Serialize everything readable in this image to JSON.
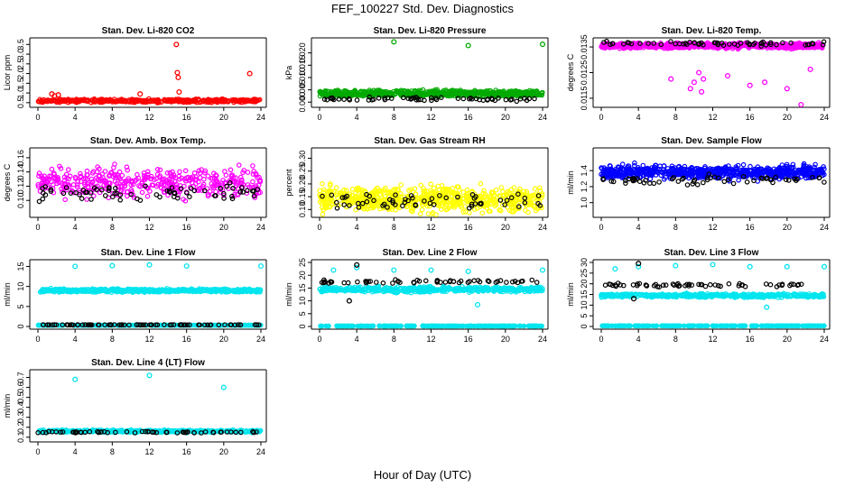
{
  "figure": {
    "title": "FEF_100227  Std. Dev. Diagnostics",
    "xlabel": "Hour of Day (UTC)"
  },
  "chart_data": [
    {
      "type": "scatter",
      "title": "Stan. Dev. Li-820 CO2",
      "ylabel": "Licor ppm",
      "xlim": [
        0,
        24
      ],
      "xticks": [
        0,
        4,
        8,
        12,
        16,
        20,
        24
      ],
      "ylim": [
        0.4,
        3.7
      ],
      "yticks": [
        0.5,
        1.0,
        1.5,
        2.0,
        2.5,
        3.0,
        3.5
      ],
      "ytick_labels": [
        "0.5",
        "1.0",
        "1.5",
        "2.0",
        "2.5",
        "3.0",
        "3.5"
      ],
      "series": [
        {
          "color": "#ff0000",
          "fill": "dense",
          "base": 0.6,
          "spread": 0.12,
          "n": 420,
          "points": [
            [
              1.5,
              0.95
            ],
            [
              1.8,
              0.85
            ],
            [
              2.2,
              0.9
            ],
            [
              11.0,
              0.95
            ],
            [
              14.9,
              3.5
            ],
            [
              15.0,
              2.05
            ],
            [
              15.1,
              1.8
            ],
            [
              15.2,
              1.05
            ],
            [
              22.8,
              2.0
            ]
          ]
        },
        {
          "color": "#000000",
          "fill": "sparse",
          "base": 0.48,
          "spread": 0.04,
          "n": 0
        }
      ]
    },
    {
      "type": "scatter",
      "title": "Stan. Dev. Li-820 Pressure",
      "ylabel": "kPa",
      "xlim": [
        0,
        24
      ],
      "xticks": [
        0,
        4,
        8,
        12,
        16,
        20,
        24
      ],
      "ylim": [
        -0.001,
        0.025
      ],
      "yticks": [
        0.0,
        0.005,
        0.01,
        0.015,
        0.02
      ],
      "ytick_labels": [
        "0.000",
        "0.005",
        "0.010",
        "0.015",
        "0.020"
      ],
      "series": [
        {
          "color": "#00aa00",
          "fill": "dense",
          "base": 0.0035,
          "spread": 0.0018,
          "n": 700,
          "points": [
            [
              8.0,
              0.0245
            ],
            [
              16.0,
              0.023
            ],
            [
              24.0,
              0.0235
            ]
          ]
        },
        {
          "color": "#000000",
          "fill": "sparse",
          "base": 0.0012,
          "spread": 0.0012,
          "n": 60
        }
      ]
    },
    {
      "type": "scatter",
      "title": "Stan. Dev. Li-820 Temp.",
      "ylabel": "degrees C",
      "xlim": [
        0,
        24
      ],
      "xticks": [
        0,
        4,
        8,
        12,
        16,
        20,
        24
      ],
      "ylim": [
        0.0145,
        0.0146
      ],
      "yticks": [
        0.0115,
        0.0125,
        0.0135
      ],
      "ytick_labels": [
        "0.0115",
        "0.0125",
        "0.0135"
      ],
      "series": [
        {
          "color": "#ff00ff",
          "fill": "dense",
          "base": 0.92,
          "spread": 0.06,
          "n": 650,
          "unitspace": true,
          "points": [
            [
              7.5,
              0.4
            ],
            [
              9.6,
              0.25
            ],
            [
              10.0,
              0.35
            ],
            [
              10.5,
              0.5
            ],
            [
              10.8,
              0.2
            ],
            [
              11.0,
              0.4
            ],
            [
              13.6,
              0.45
            ],
            [
              16.0,
              0.3
            ],
            [
              17.6,
              0.35
            ],
            [
              20.0,
              0.25
            ],
            [
              21.5,
              0.0
            ],
            [
              22.5,
              0.55
            ]
          ]
        },
        {
          "color": "#000000",
          "fill": "sparse",
          "base": 0.95,
          "spread": 0.05,
          "n": 60,
          "unitspace": true
        }
      ]
    },
    {
      "type": "scatter",
      "title": "Stan. Dev. Amb. Box Temp.",
      "ylabel": "degrees C",
      "xlim": [
        0,
        24
      ],
      "xticks": [
        0,
        4,
        8,
        12,
        16,
        20,
        24
      ],
      "ylim": [
        0.08,
        0.17
      ],
      "yticks": [
        0.1,
        0.12,
        0.14,
        0.16
      ],
      "ytick_labels": [
        "0.10",
        "0.12",
        "0.14",
        "0.16"
      ],
      "series": [
        {
          "color": "#ff00ff",
          "fill": "dense",
          "base": 0.125,
          "spread": 0.03,
          "n": 420,
          "hollow": true
        },
        {
          "color": "#000000",
          "fill": "sparse",
          "base": 0.11,
          "spread": 0.018,
          "n": 70,
          "hollow": true
        }
      ]
    },
    {
      "type": "scatter",
      "title": "Stan. Dev. Gas Stream RH",
      "ylabel": "percent",
      "xlim": [
        0,
        24
      ],
      "xticks": [
        0,
        4,
        8,
        12,
        16,
        20,
        24
      ],
      "ylim": [
        0.08,
        0.33
      ],
      "yticks": [
        0.1,
        0.15,
        0.2,
        0.25,
        0.3
      ],
      "ytick_labels": [
        "0.10",
        "0.15",
        "0.20",
        "0.25",
        "0.30"
      ],
      "series": [
        {
          "color": "#ffff00",
          "fill": "dense",
          "base": 0.14,
          "spread": 0.07,
          "n": 700
        },
        {
          "color": "#000000",
          "fill": "sparse",
          "base": 0.13,
          "spread": 0.05,
          "n": 60,
          "hollow": true
        }
      ]
    },
    {
      "type": "scatter",
      "title": "Stan. Dev. Sample Flow",
      "ylabel": "ml/min",
      "xlim": [
        0,
        24
      ],
      "xticks": [
        0,
        4,
        8,
        12,
        16,
        20,
        24
      ],
      "ylim": [
        0.85,
        1.65
      ],
      "yticks": [
        1.0,
        1.2,
        1.4
      ],
      "ytick_labels": [
        "1.0",
        "1.2",
        "1.4"
      ],
      "series": [
        {
          "color": "#0000ff",
          "fill": "dense",
          "base": 1.38,
          "spread": 0.12,
          "n": 700,
          "hollow": true
        },
        {
          "color": "#000000",
          "fill": "sparse",
          "base": 1.28,
          "spread": 0.08,
          "n": 60,
          "hollow": true
        }
      ]
    },
    {
      "type": "scatter",
      "title": "Stan. Dev. Line 1 Flow",
      "ylabel": "ml/min",
      "xlim": [
        0,
        24
      ],
      "xticks": [
        0,
        4,
        8,
        12,
        16,
        20,
        24
      ],
      "ylim": [
        0,
        16
      ],
      "yticks": [
        0,
        5,
        10,
        15
      ],
      "ytick_labels": [
        "0",
        "5",
        "10",
        "15"
      ],
      "series": [
        {
          "color": "#00e5ee",
          "fill": "band",
          "base": 9.0,
          "spread": 0.6,
          "n": 500,
          "points": [
            [
              4.0,
              15.0
            ],
            [
              8.0,
              15.2
            ],
            [
              12.0,
              15.4
            ],
            [
              16.0,
              15.1
            ],
            [
              24.0,
              15.1
            ]
          ]
        },
        {
          "color": "#00e5ee",
          "fill": "line",
          "base": 0.3,
          "spread": 0.05,
          "n": 200
        },
        {
          "color": "#000000",
          "fill": "line",
          "base": 0.4,
          "spread": 0.05,
          "n": 80,
          "hollow": true
        }
      ]
    },
    {
      "type": "scatter",
      "title": "Stan. Dev. Line 2 Flow",
      "ylabel": "ml/min",
      "xlim": [
        0,
        24
      ],
      "xticks": [
        0,
        4,
        8,
        12,
        16,
        20,
        24
      ],
      "ylim": [
        0,
        25
      ],
      "yticks": [
        0,
        5,
        10,
        15,
        20,
        25
      ],
      "ytick_labels": [
        "0",
        "5",
        "10",
        "15",
        "20",
        "25"
      ],
      "series": [
        {
          "color": "#00e5ee",
          "fill": "band",
          "base": 14.5,
          "spread": 1.5,
          "n": 500,
          "points": [
            [
              1.5,
              22.0
            ],
            [
              4.0,
              23.0
            ],
            [
              8.0,
              22.0
            ],
            [
              12.0,
              22.0
            ],
            [
              16.0,
              21.5
            ],
            [
              17.0,
              8.5
            ],
            [
              24.0,
              22.0
            ]
          ]
        },
        {
          "color": "#00e5ee",
          "fill": "line",
          "base": 0.2,
          "spread": 0.05,
          "n": 200
        },
        {
          "color": "#000000",
          "fill": "sparse",
          "base": 17.5,
          "spread": 1.2,
          "n": 60,
          "hollow": true,
          "points": [
            [
              3.2,
              10.0
            ],
            [
              4.0,
              24.0
            ]
          ]
        }
      ]
    },
    {
      "type": "scatter",
      "title": "Stan. Dev. Line 3 Flow",
      "ylabel": "ml/min",
      "xlim": [
        0,
        24
      ],
      "xticks": [
        0,
        4,
        8,
        12,
        16,
        20,
        24
      ],
      "ylim": [
        0,
        30
      ],
      "yticks": [
        0,
        5,
        10,
        15,
        20,
        25,
        30
      ],
      "ytick_labels": [
        "0",
        "5",
        "10",
        "15",
        "20",
        "25",
        "30"
      ],
      "series": [
        {
          "color": "#00e5ee",
          "fill": "band",
          "base": 14.5,
          "spread": 1.2,
          "n": 500,
          "points": [
            [
              1.5,
              27.0
            ],
            [
              4.0,
              28.0
            ],
            [
              8.0,
              28.5
            ],
            [
              12.0,
              29.0
            ],
            [
              16.0,
              28.0
            ],
            [
              17.8,
              9.0
            ],
            [
              20.0,
              28.0
            ],
            [
              24.0,
              28.0
            ]
          ]
        },
        {
          "color": "#00e5ee",
          "fill": "line",
          "base": 0.3,
          "spread": 0.05,
          "n": 200
        },
        {
          "color": "#000000",
          "fill": "sparse",
          "base": 19.5,
          "spread": 1.2,
          "n": 60,
          "hollow": true,
          "points": [
            [
              3.5,
              13.0
            ],
            [
              4.0,
              29.5
            ]
          ]
        }
      ]
    },
    {
      "type": "scatter",
      "title": "Stan. Dev. Line 4 (LT) Flow",
      "ylabel": "ml/min",
      "xlim": [
        0,
        24
      ],
      "xticks": [
        0,
        4,
        8,
        12,
        16,
        20,
        24
      ],
      "ylim": [
        0.08,
        0.75
      ],
      "yticks": [
        0.1,
        0.2,
        0.3,
        0.4,
        0.5,
        0.6,
        0.7
      ],
      "ytick_labels": [
        "0.1",
        "0.2",
        "0.3",
        "0.4",
        "0.5",
        "0.6",
        "0.7"
      ],
      "series": [
        {
          "color": "#00e5ee",
          "fill": "band",
          "base": 0.16,
          "spread": 0.018,
          "n": 450,
          "points": [
            [
              4.0,
              0.68
            ],
            [
              12.0,
              0.72
            ],
            [
              20.0,
              0.6
            ]
          ]
        },
        {
          "color": "#000000",
          "fill": "sparse",
          "base": 0.15,
          "spread": 0.015,
          "n": 60,
          "hollow": true
        }
      ]
    }
  ]
}
